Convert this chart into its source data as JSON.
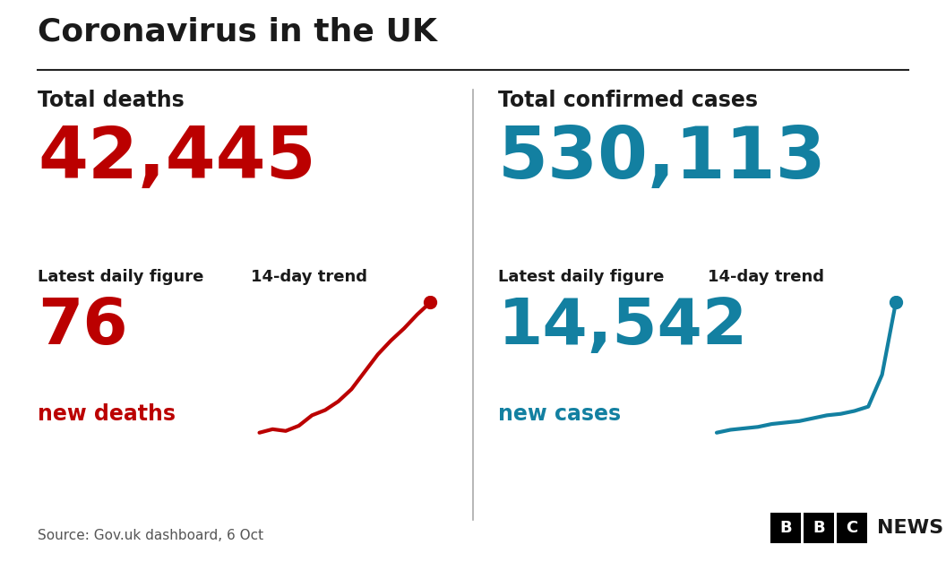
{
  "title": "Coronavirus in the UK",
  "bg_color": "#ffffff",
  "text_color": "#1a1a1a",
  "red_color": "#bb0000",
  "blue_color": "#1380a1",
  "left_panel": {
    "label": "Total deaths",
    "total": "42,445",
    "daily_label": "Latest daily figure",
    "trend_label": "14-day trend",
    "daily_value": "76",
    "daily_sublabel": "new deaths",
    "trend_x": [
      0,
      1,
      2,
      3,
      4,
      5,
      6,
      7,
      8,
      9,
      10,
      11,
      12,
      13
    ],
    "trend_y": [
      1.0,
      1.2,
      1.1,
      1.4,
      2.0,
      2.3,
      2.8,
      3.5,
      4.5,
      5.5,
      6.3,
      7.0,
      7.8,
      8.5
    ]
  },
  "right_panel": {
    "label": "Total confirmed cases",
    "total": "530,113",
    "daily_label": "Latest daily figure",
    "trend_label": "14-day trend",
    "daily_value": "14,542",
    "daily_sublabel": "new cases",
    "trend_x": [
      0,
      1,
      2,
      3,
      4,
      5,
      6,
      7,
      8,
      9,
      10,
      11,
      12,
      13
    ],
    "trend_y": [
      1.0,
      1.1,
      1.15,
      1.2,
      1.3,
      1.35,
      1.4,
      1.5,
      1.6,
      1.65,
      1.75,
      1.9,
      3.0,
      5.5
    ]
  },
  "source": "Source: Gov.uk dashboard, 6 Oct",
  "bbc_letters": [
    "B",
    "B",
    "C"
  ]
}
